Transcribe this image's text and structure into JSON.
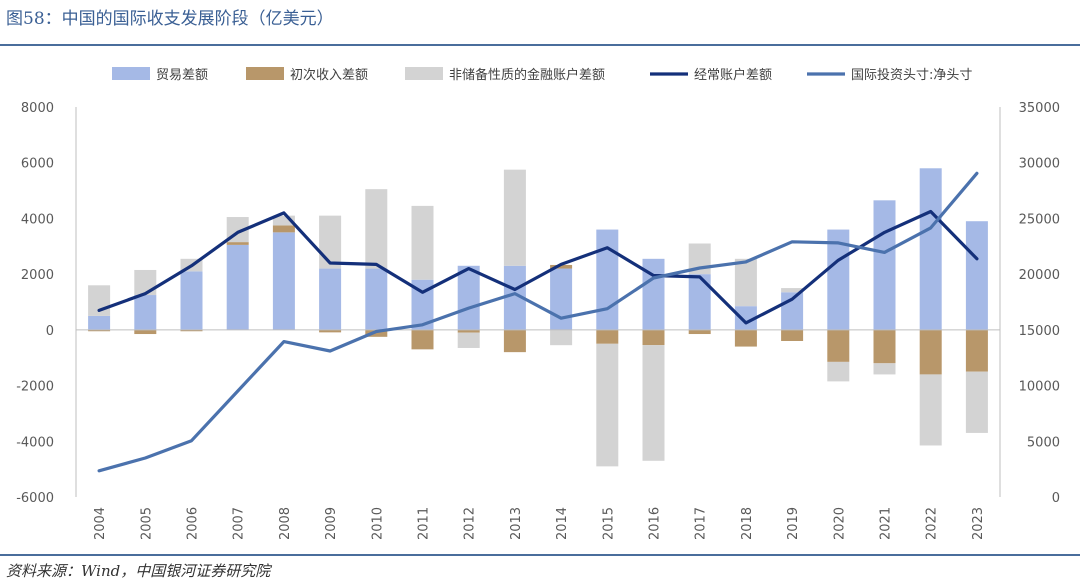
{
  "figure": {
    "title": "图58：中国的国际收支发展阶段（亿美元）",
    "source": "资料来源：Wind，中国银河证券研究院"
  },
  "colors": {
    "trade": "#a5b9e6",
    "income": "#b8976a",
    "financial": "#d3d3d3",
    "current_account": "#14307a",
    "niip": "#4b72ad",
    "axis": "#bfbfbf",
    "text": "#595959",
    "rule": "#4a6d9c"
  },
  "chart_data": {
    "type": "bar",
    "stacked": true,
    "categories": [
      "2004",
      "2005",
      "2006",
      "2007",
      "2008",
      "2009",
      "2010",
      "2011",
      "2012",
      "2013",
      "2014",
      "2015",
      "2016",
      "2017",
      "2018",
      "2019",
      "2020",
      "2021",
      "2022",
      "2023"
    ],
    "ylim": [
      -6000,
      8000
    ],
    "yticks": [
      -6000,
      -4000,
      -2000,
      0,
      2000,
      4000,
      6000,
      8000
    ],
    "y2lim": [
      0,
      35000
    ],
    "y2ticks": [
      0,
      5000,
      10000,
      15000,
      20000,
      25000,
      30000,
      35000
    ],
    "legend_position": "top",
    "series": [
      {
        "name": "贸易差额",
        "kind": "bar",
        "axis": "left",
        "values": [
          500,
          1250,
          2100,
          3050,
          3500,
          2200,
          2200,
          1800,
          2300,
          2300,
          2200,
          3600,
          2550,
          2000,
          850,
          1350,
          3600,
          4650,
          5800,
          3900
        ]
      },
      {
        "name": "初次收入差额",
        "kind": "bar",
        "axis": "left",
        "values": [
          -50,
          -150,
          -50,
          100,
          250,
          -90,
          -250,
          -700,
          -100,
          -800,
          130,
          -500,
          -550,
          -150,
          -600,
          -400,
          -1150,
          -1200,
          -1600,
          -1500
        ]
      },
      {
        "name": "非储备性质的金融账户差额",
        "kind": "bar",
        "axis": "left",
        "values": [
          1100,
          900,
          450,
          900,
          350,
          1900,
          2850,
          2650,
          -550,
          3450,
          -550,
          -4400,
          -4150,
          1100,
          1700,
          150,
          -700,
          -400,
          -2550,
          -2200
        ]
      },
      {
        "name": "经常账户差额",
        "kind": "line",
        "axis": "left",
        "values": [
          700,
          1300,
          2300,
          3500,
          4200,
          2400,
          2350,
          1350,
          2200,
          1450,
          2350,
          2950,
          1950,
          1900,
          250,
          1100,
          2500,
          3500,
          4250,
          2550
        ]
      },
      {
        "name": "国际投资头寸:净头寸",
        "kind": "line",
        "axis": "right",
        "values": [
          2350,
          3500,
          5050,
          9500,
          13950,
          13100,
          14850,
          15450,
          16950,
          18250,
          16050,
          16900,
          19650,
          20550,
          21100,
          22900,
          22800,
          21950,
          24150,
          29050
        ]
      }
    ]
  }
}
